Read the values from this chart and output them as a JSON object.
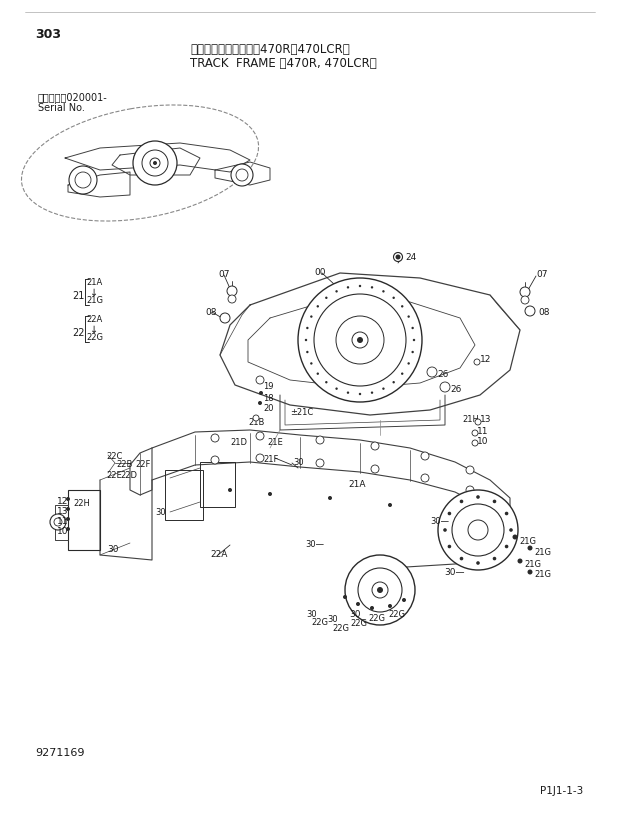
{
  "title_jp": "トラックフレーム　＜470R，470LCR＞",
  "title_en": "TRACK  FRAME ＜470R, 470LCR＞",
  "page_num": "303",
  "serial_label": "適用号機　020001-",
  "serial_sub": "Serial No.",
  "part_num": "P1J1-1-3",
  "diagram_num": "9271169",
  "bg_color": "#ffffff",
  "text_color": "#1a1a1a",
  "line_color": "#2a2a2a",
  "gray": "#666666"
}
